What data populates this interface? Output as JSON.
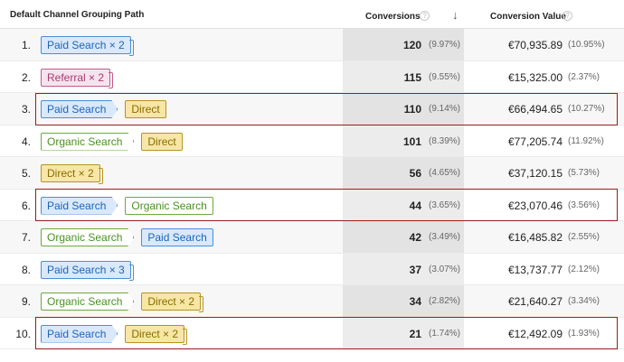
{
  "header": {
    "path_label": "Default Channel Grouping Path",
    "conversions_label": "Conversions",
    "value_label": "Conversion Value",
    "help_glyph": "?",
    "sort_glyph": "↓"
  },
  "colors": {
    "Paid Search": "#4a8fd9",
    "Referral": "#c05a8a",
    "Organic Search": "#6aab3a",
    "Direct": "#b7941d",
    "highlight": "#9b1c1c"
  },
  "rows": [
    {
      "index": "1.",
      "path": [
        {
          "label": "Paid Search × 2",
          "type": "paid",
          "stack": true
        }
      ],
      "conversions": "120",
      "conv_pct": "(9.97%)",
      "value": "€70,935.89",
      "value_pct": "(10.95%)",
      "highlighted": false
    },
    {
      "index": "2.",
      "path": [
        {
          "label": "Referral × 2",
          "type": "ref",
          "stack": true
        }
      ],
      "conversions": "115",
      "conv_pct": "(9.55%)",
      "value": "€15,325.00",
      "value_pct": "(2.37%)",
      "highlighted": false
    },
    {
      "index": "3.",
      "path": [
        {
          "label": "Paid Search",
          "type": "paid",
          "stack": false
        },
        {
          "label": "Direct",
          "type": "dir",
          "stack": false
        }
      ],
      "conversions": "110",
      "conv_pct": "(9.14%)",
      "value": "€66,494.65",
      "value_pct": "(10.27%)",
      "highlighted": true
    },
    {
      "index": "4.",
      "path": [
        {
          "label": "Organic Search",
          "type": "org",
          "stack": false
        },
        {
          "label": "Direct",
          "type": "dir",
          "stack": false
        }
      ],
      "conversions": "101",
      "conv_pct": "(8.39%)",
      "value": "€77,205.74",
      "value_pct": "(11.92%)",
      "highlighted": false
    },
    {
      "index": "5.",
      "path": [
        {
          "label": "Direct × 2",
          "type": "dir",
          "stack": true
        }
      ],
      "conversions": "56",
      "conv_pct": "(4.65%)",
      "value": "€37,120.15",
      "value_pct": "(5.73%)",
      "highlighted": false
    },
    {
      "index": "6.",
      "path": [
        {
          "label": "Paid Search",
          "type": "paid",
          "stack": false
        },
        {
          "label": "Organic Search",
          "type": "org",
          "stack": false
        }
      ],
      "conversions": "44",
      "conv_pct": "(3.65%)",
      "value": "€23,070.46",
      "value_pct": "(3.56%)",
      "highlighted": true
    },
    {
      "index": "7.",
      "path": [
        {
          "label": "Organic Search",
          "type": "org",
          "stack": false
        },
        {
          "label": "Paid Search",
          "type": "paid",
          "stack": false
        }
      ],
      "conversions": "42",
      "conv_pct": "(3.49%)",
      "value": "€16,485.82",
      "value_pct": "(2.55%)",
      "highlighted": false
    },
    {
      "index": "8.",
      "path": [
        {
          "label": "Paid Search × 3",
          "type": "paid",
          "stack": true
        }
      ],
      "conversions": "37",
      "conv_pct": "(3.07%)",
      "value": "€13,737.77",
      "value_pct": "(2.12%)",
      "highlighted": false
    },
    {
      "index": "9.",
      "path": [
        {
          "label": "Organic Search",
          "type": "org",
          "stack": false
        },
        {
          "label": "Direct × 2",
          "type": "dir",
          "stack": true
        }
      ],
      "conversions": "34",
      "conv_pct": "(2.82%)",
      "value": "€21,640.27",
      "value_pct": "(3.34%)",
      "highlighted": false
    },
    {
      "index": "10.",
      "path": [
        {
          "label": "Paid Search",
          "type": "paid",
          "stack": false
        },
        {
          "label": "Direct × 2",
          "type": "dir",
          "stack": true
        }
      ],
      "conversions": "21",
      "conv_pct": "(1.74%)",
      "value": "€12,492.09",
      "value_pct": "(1.93%)",
      "highlighted": true
    }
  ]
}
